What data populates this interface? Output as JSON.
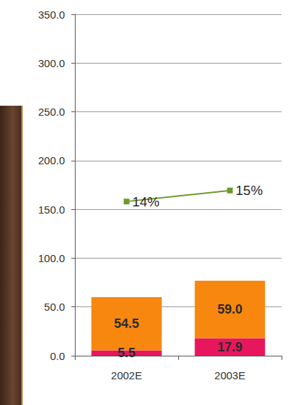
{
  "chart_data": {
    "type": "bar",
    "stacked": true,
    "data_labels": true,
    "grid": true,
    "categories": [
      "2002E",
      "2003E"
    ],
    "ylim": [
      0,
      350
    ],
    "yticks": [
      {
        "value": 0,
        "label": "0.0"
      },
      {
        "value": 50,
        "label": "50.0"
      },
      {
        "value": 100,
        "label": "100.0"
      },
      {
        "value": 150,
        "label": "150.0"
      },
      {
        "value": 200,
        "label": "200.0"
      },
      {
        "value": 250,
        "label": "250.0"
      },
      {
        "value": 300,
        "label": "300.0"
      },
      {
        "value": 350,
        "label": "350.0"
      }
    ],
    "y2lim": [
      0,
      31
    ],
    "y2ticks": [],
    "series": [
      {
        "type": "bar",
        "color": "#e8175d",
        "values": [
          5.5,
          17.9
        ],
        "value_labels": [
          "5.5",
          "17.9"
        ]
      },
      {
        "type": "bar",
        "color": "#f7870f",
        "values": [
          54.5,
          59
        ],
        "value_labels": [
          "54.5",
          "59.0"
        ]
      },
      {
        "type": "line",
        "axis": "y2",
        "color": "#6b9a2b",
        "marker": "square",
        "values": [
          14,
          15
        ],
        "value_labels": [
          "14%",
          "15%"
        ]
      }
    ]
  }
}
